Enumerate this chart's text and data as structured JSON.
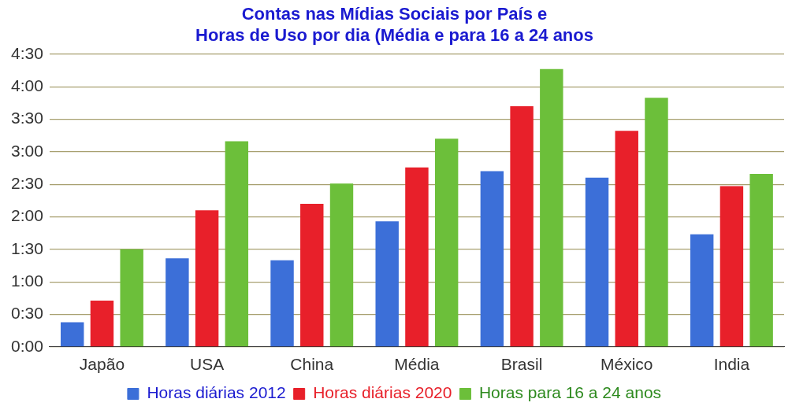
{
  "chart_data": {
    "type": "bar",
    "title": "Contas nas Mídias Sociais por País e\nHoras de Uso por dia (Média e para 16 a 24 anos",
    "categories": [
      "Japão",
      "USA",
      "China",
      "Média",
      "Brasil",
      "México",
      "India"
    ],
    "series": [
      {
        "name": "Horas diárias 2012",
        "color": "#3c6fd8",
        "values": [
          0.38,
          1.36,
          1.33,
          1.93,
          2.7,
          2.6,
          1.73
        ]
      },
      {
        "name": "Horas diárias 2020",
        "color": "#e8202a",
        "values": [
          0.71,
          2.1,
          2.2,
          2.76,
          3.7,
          3.32,
          2.47
        ]
      },
      {
        "name": "Horas para 16 a 24 anos",
        "color": "#6cbf3a",
        "values": [
          1.5,
          3.16,
          2.51,
          3.2,
          4.27,
          3.83,
          2.66
        ]
      }
    ],
    "ylim": [
      0,
      4.5
    ],
    "yticks": [
      {
        "value": 0,
        "label": "0:00"
      },
      {
        "value": 0.5,
        "label": "0:30"
      },
      {
        "value": 1,
        "label": "1:00"
      },
      {
        "value": 1.5,
        "label": "1:30"
      },
      {
        "value": 2,
        "label": "2:00"
      },
      {
        "value": 2.5,
        "label": "2:30"
      },
      {
        "value": 3,
        "label": "3:00"
      },
      {
        "value": 3.5,
        "label": "3:30"
      },
      {
        "value": 4,
        "label": "4:00"
      },
      {
        "value": 4.5,
        "label": "4:30"
      }
    ],
    "grid": "y",
    "legend": "bottom"
  }
}
